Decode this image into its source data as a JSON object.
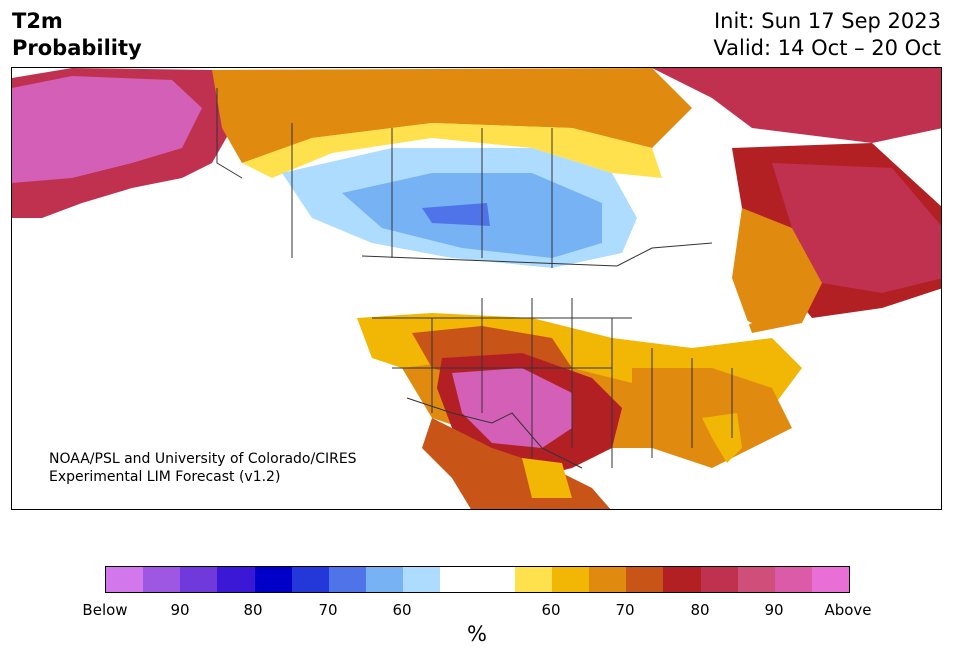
{
  "header": {
    "variable": "T2m",
    "product": "Probability",
    "init": "Init: Sun 17 Sep 2023",
    "valid": "Valid: 14 Oct – 20 Oct"
  },
  "credit": {
    "line1": "NOAA/PSL and University of Colorado/CIRES",
    "line2": "Experimental LIM Forecast (v1.2)"
  },
  "colorbar": {
    "unit": "%",
    "colors": [
      "#d277ec",
      "#9e57e2",
      "#6f39dc",
      "#3a18d6",
      "#0000c8",
      "#2437d9",
      "#4f73e8",
      "#76b2f4",
      "#addcff",
      "#ffffff",
      "#ffffff",
      "#ffe14d",
      "#f2b705",
      "#e08a10",
      "#c95418",
      "#b32024",
      "#c0314f",
      "#cf4e7a",
      "#dc5ba8",
      "#e96fd6"
    ],
    "tick_labels": [
      "Below",
      "90",
      "80",
      "70",
      "60",
      "60",
      "70",
      "80",
      "90",
      "Above"
    ]
  },
  "map": {
    "colors": {
      "ocean": "#ffffff",
      "above_95": "#d45fb6",
      "above_90": "#c0314f",
      "above_80": "#b32024",
      "above_75": "#c95418",
      "above_70": "#e08a10",
      "above_65": "#f2b705",
      "above_60": "#ffe14d",
      "below_60": "#addcff",
      "below_65": "#76b2f4",
      "below_70": "#4f73e8",
      "lines": "#333333"
    }
  }
}
